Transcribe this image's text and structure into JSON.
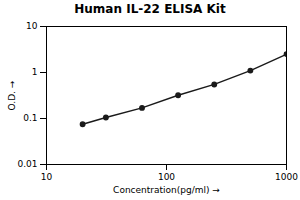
{
  "chart_data": {
    "type": "line",
    "title": "Human IL-22 ELISA Kit",
    "x_label": "Concentration(pg/ml)",
    "y_label": "O.D.",
    "x": [
      20,
      31.25,
      62.5,
      125,
      250,
      500,
      1000
    ],
    "values": [
      0.075,
      0.105,
      0.17,
      0.32,
      0.55,
      1.1,
      2.5
    ],
    "color": "#1a1a1a",
    "marker": "circle",
    "line_style": "solid",
    "log": true,
    "grid": false,
    "xlim": [
      10,
      1000
    ],
    "ylim": [
      0.01,
      10
    ],
    "xticks": [
      10,
      100,
      1000
    ],
    "yticks": [
      0.01,
      0.1,
      1,
      10
    ]
  }
}
